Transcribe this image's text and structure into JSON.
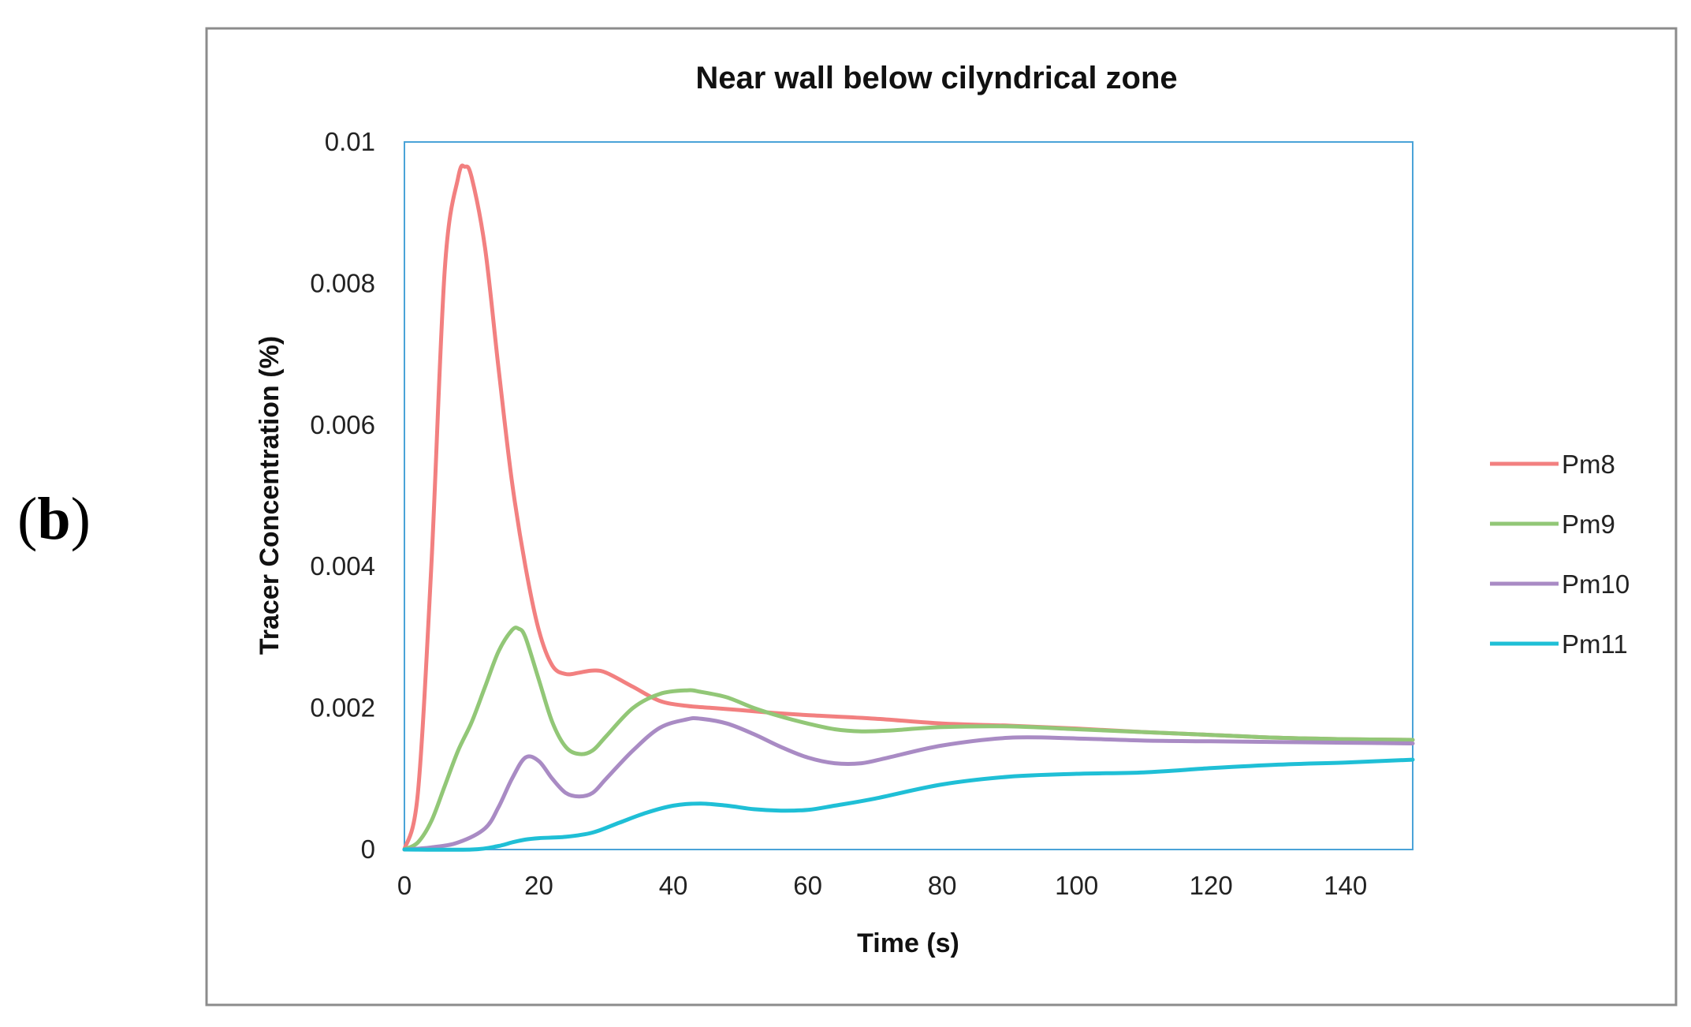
{
  "panel_label": {
    "open": "(",
    "letter": "b",
    "close": ")"
  },
  "chart_data": {
    "type": "line",
    "title": "Near wall below cilyndrical  zone",
    "xlabel": "Time (s)",
    "ylabel": "Tracer Concentration  (%)",
    "xlim": [
      0,
      150
    ],
    "ylim": [
      0,
      0.01
    ],
    "xticks": [
      0,
      20,
      40,
      60,
      80,
      100,
      120,
      140
    ],
    "yticks": [
      0,
      0.002,
      0.004,
      0.006,
      0.008,
      0.01
    ],
    "ytick_labels": [
      "0",
      "0.002",
      "0.004",
      "0.006",
      "0.008",
      "0.01"
    ],
    "grid": false,
    "legend_position": "right",
    "series": [
      {
        "name": "Pm8",
        "color": "#f28080",
        "x": [
          0,
          2,
          4,
          6,
          8,
          9,
          10,
          12,
          14,
          16,
          18,
          20,
          22,
          24,
          26,
          28,
          30,
          34,
          38,
          42,
          46,
          50,
          55,
          60,
          70,
          80,
          90,
          100,
          110,
          120,
          130,
          140,
          150
        ],
        "y": [
          0,
          0.0008,
          0.004,
          0.0082,
          0.0095,
          0.00965,
          0.0095,
          0.0085,
          0.0068,
          0.0052,
          0.004,
          0.0031,
          0.0026,
          0.00248,
          0.0025,
          0.00253,
          0.0025,
          0.0023,
          0.0021,
          0.00203,
          0.002,
          0.00197,
          0.00193,
          0.0019,
          0.00185,
          0.00178,
          0.00175,
          0.00171,
          0.00166,
          0.00162,
          0.00158,
          0.00156,
          0.00155
        ]
      },
      {
        "name": "Pm9",
        "color": "#92c777",
        "x": [
          0,
          2,
          4,
          6,
          8,
          10,
          12,
          14,
          16,
          17,
          18,
          20,
          22,
          24,
          26,
          28,
          30,
          34,
          38,
          42,
          44,
          48,
          52,
          56,
          60,
          64,
          68,
          72,
          80,
          90,
          100,
          110,
          120,
          130,
          140,
          150
        ],
        "y": [
          0,
          0.0001,
          0.0004,
          0.0009,
          0.0014,
          0.0018,
          0.0023,
          0.0028,
          0.0031,
          0.00312,
          0.003,
          0.0024,
          0.0018,
          0.00145,
          0.00135,
          0.0014,
          0.0016,
          0.002,
          0.0022,
          0.00225,
          0.00223,
          0.00215,
          0.002,
          0.00188,
          0.00178,
          0.0017,
          0.00167,
          0.00168,
          0.00173,
          0.00174,
          0.0017,
          0.00166,
          0.00162,
          0.00158,
          0.00156,
          0.00155
        ]
      },
      {
        "name": "Pm10",
        "color": "#a98bc4",
        "x": [
          0,
          4,
          8,
          12,
          14,
          16,
          18,
          20,
          22,
          24,
          26,
          28,
          30,
          34,
          38,
          42,
          44,
          48,
          52,
          56,
          60,
          64,
          68,
          72,
          80,
          90,
          100,
          110,
          120,
          130,
          140,
          150
        ],
        "y": [
          0,
          3e-05,
          0.0001,
          0.0003,
          0.0006,
          0.001,
          0.0013,
          0.00125,
          0.001,
          0.0008,
          0.00075,
          0.0008,
          0.001,
          0.0014,
          0.00172,
          0.00184,
          0.00185,
          0.00178,
          0.00163,
          0.00145,
          0.0013,
          0.00122,
          0.00122,
          0.0013,
          0.00147,
          0.00158,
          0.00157,
          0.00154,
          0.00153,
          0.00152,
          0.00151,
          0.0015
        ]
      },
      {
        "name": "Pm11",
        "color": "#1fbfd6",
        "x": [
          0,
          10,
          14,
          16,
          18,
          20,
          24,
          28,
          32,
          36,
          40,
          44,
          48,
          52,
          56,
          60,
          64,
          70,
          80,
          90,
          100,
          110,
          120,
          130,
          140,
          150
        ],
        "y": [
          0,
          0,
          5e-05,
          0.0001,
          0.00014,
          0.00016,
          0.00018,
          0.00024,
          0.00038,
          0.00052,
          0.00062,
          0.00065,
          0.00062,
          0.00057,
          0.00055,
          0.00056,
          0.00062,
          0.00072,
          0.00092,
          0.00103,
          0.00107,
          0.00109,
          0.00115,
          0.0012,
          0.00123,
          0.00127
        ]
      }
    ]
  }
}
